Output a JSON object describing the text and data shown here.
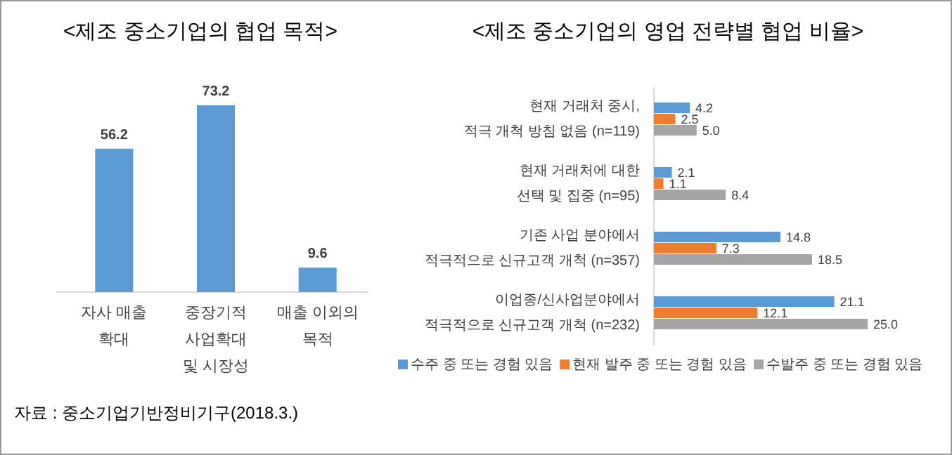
{
  "chart_data": [
    {
      "type": "bar",
      "title": "<제조 중소기업의 협업 목적>",
      "categories": [
        "자사 매출\n확대",
        "중장기적\n사업확대\n및 시장성",
        "매출 이외의\n목적"
      ],
      "values": [
        56.2,
        73.2,
        9.6
      ],
      "color": "#5b9bd5",
      "data_labels": true,
      "annotations": [
        "자료 : 중소기업기반정비기구(2018.3.)"
      ]
    },
    {
      "type": "bar",
      "orientation": "horizontal",
      "title": "<제조 중소기업의 영업 전략별 협업 비율>",
      "categories": [
        "현재 거래처 중시,\n적극 개척 방침 없음 (n=119)",
        "현재 거래처에 대한\n선택 및 집중 (n=95)",
        "기존 사업 분야에서\n적극적으로 신규고객 개척 (n=357)",
        "이업종/신사업분야에서\n적극적으로 신규고객 개척 (n=232)"
      ],
      "legend": "bottom",
      "series": [
        {
          "name": "수주 중 또는 경험 있음",
          "color": "#5b9bd5",
          "values": [
            4.2,
            2.1,
            14.8,
            21.1
          ],
          "value_labels": [
            "4.2",
            "2.1",
            "14.8",
            "21.1"
          ]
        },
        {
          "name": "현재 발주 중 또는 경험 있음",
          "color": "#ed7d31",
          "values": [
            2.5,
            1.1,
            7.3,
            12.1
          ],
          "value_labels": [
            "2.5",
            "1.1",
            "7.3",
            "12.1"
          ]
        },
        {
          "name": "수발주 중 또는 경험 있음",
          "color": "#a5a5a5",
          "values": [
            5.0,
            8.4,
            18.5,
            25.0
          ],
          "value_labels": [
            "5.0",
            "8.4",
            "18.5",
            "25.0"
          ]
        }
      ]
    }
  ]
}
